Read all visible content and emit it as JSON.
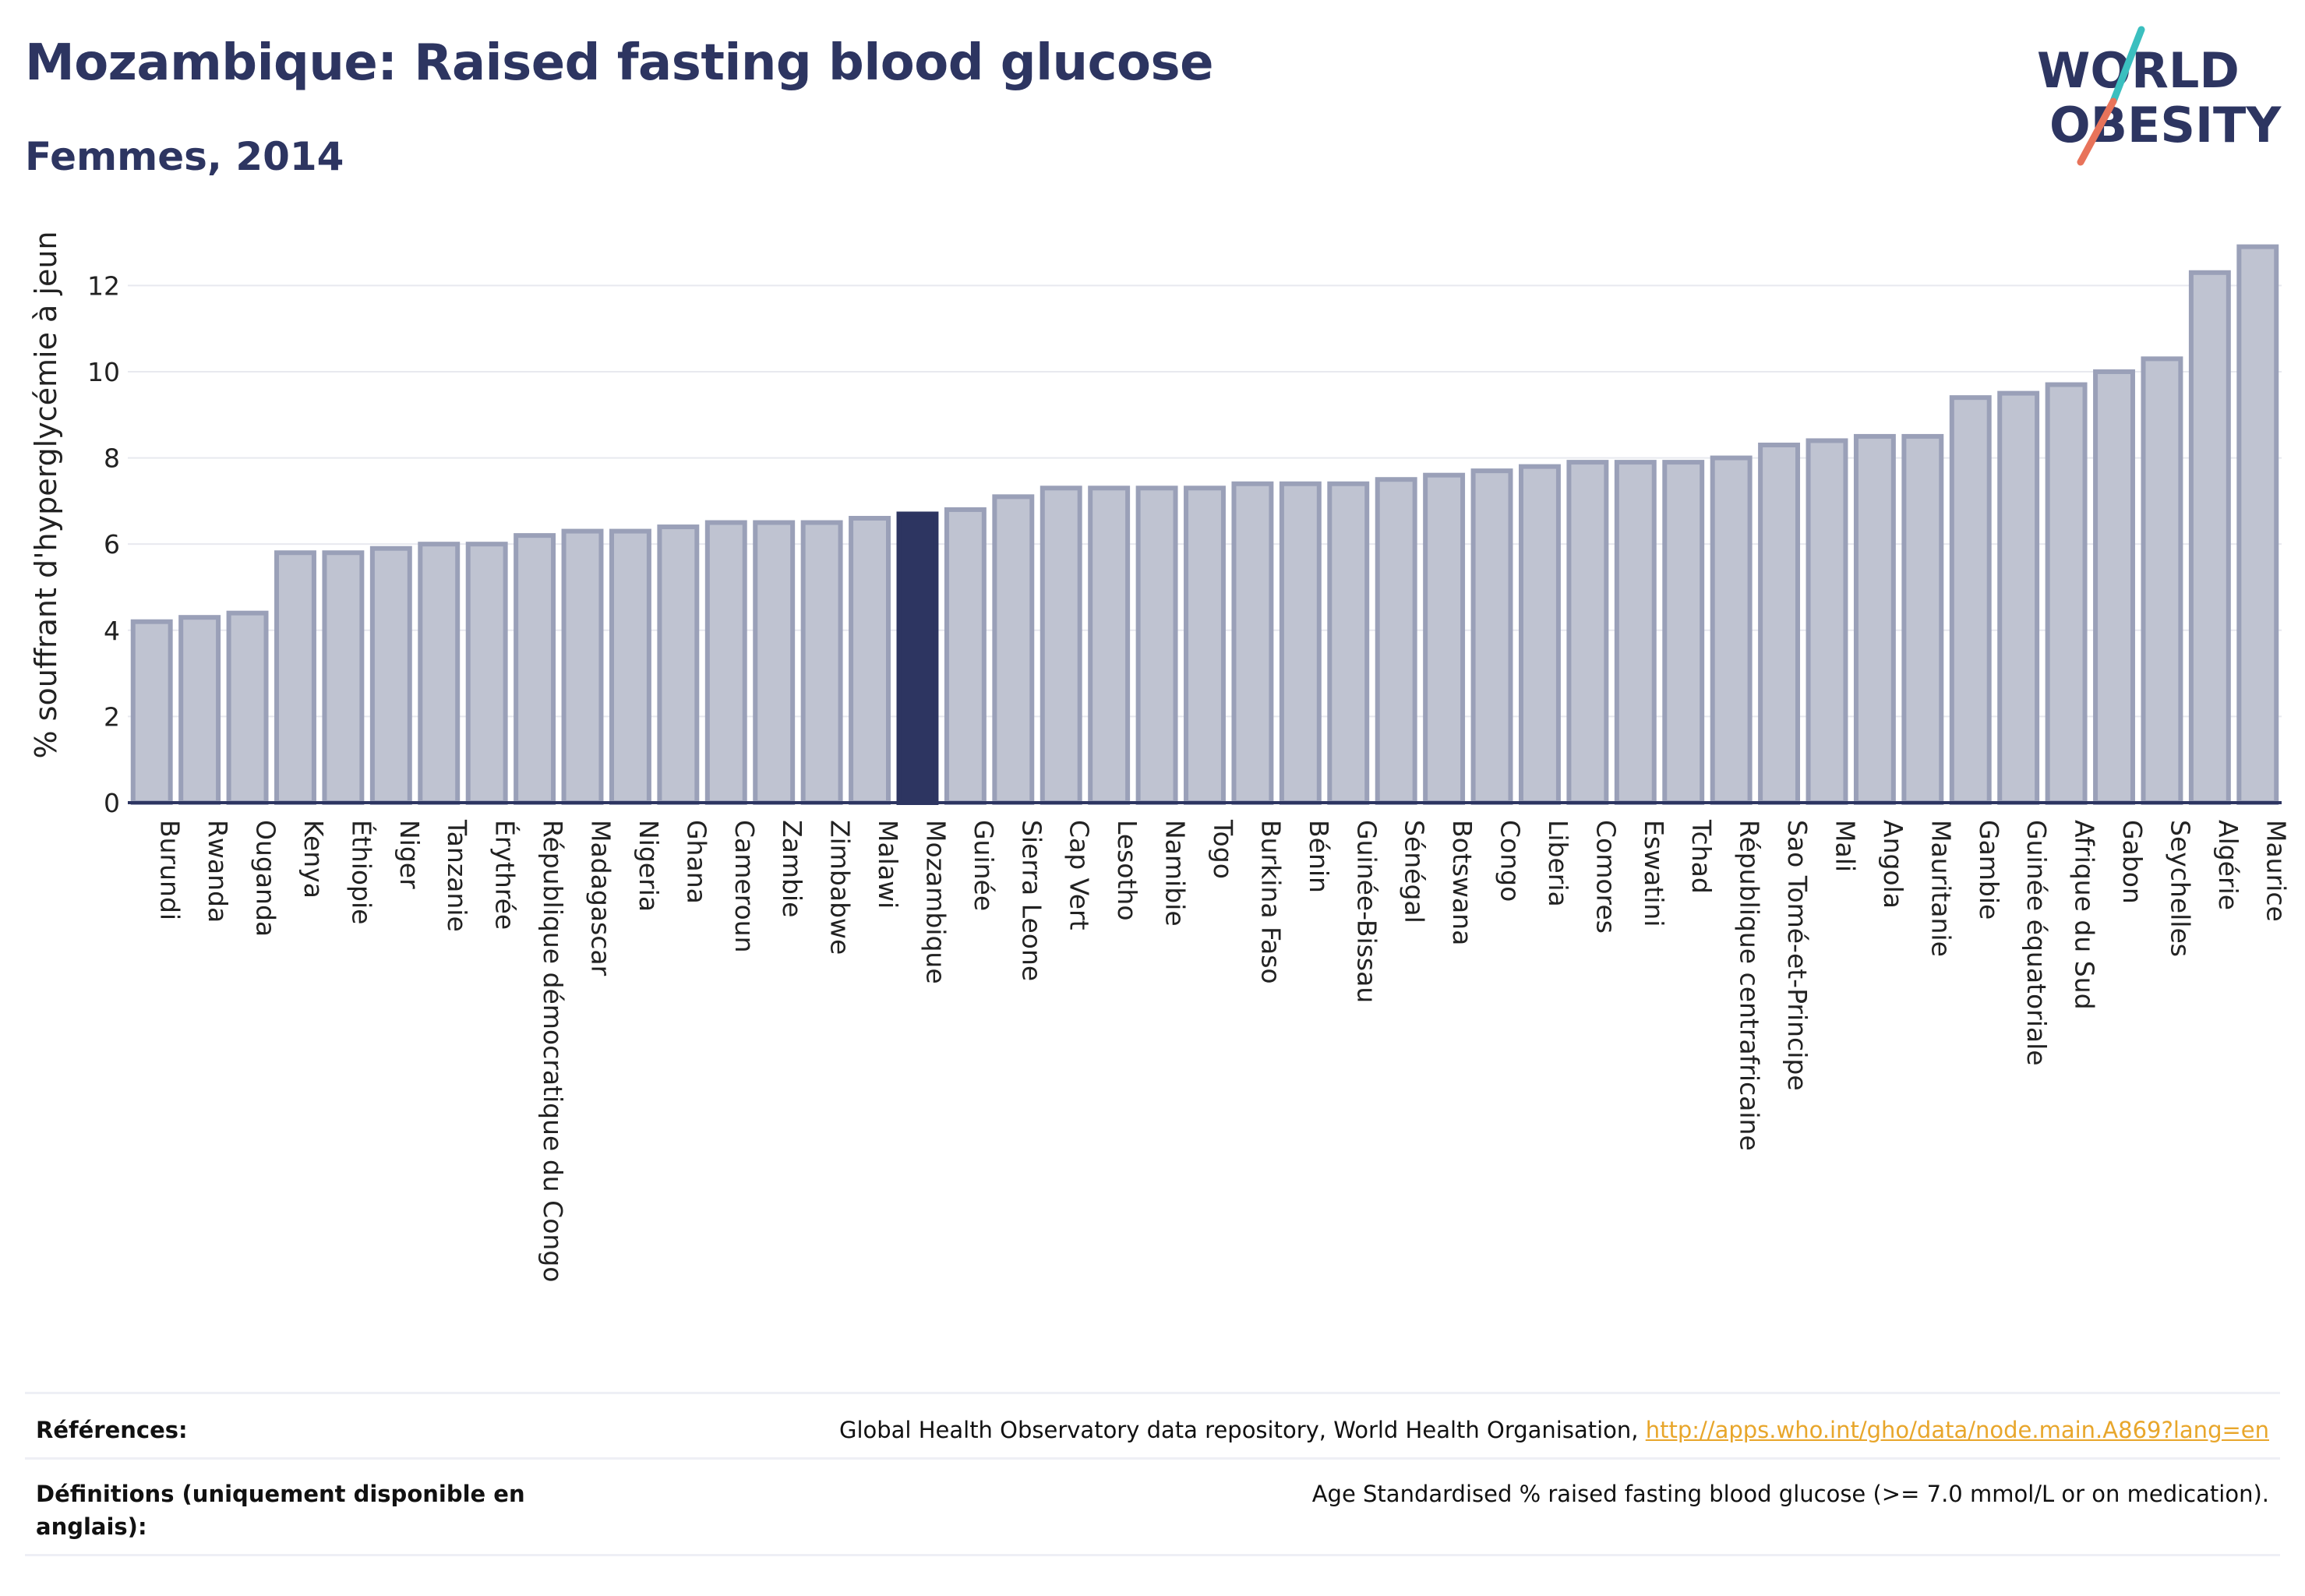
{
  "header": {
    "title": "Mozambique: Raised fasting blood glucose",
    "subtitle": "Femmes, 2014"
  },
  "logo": {
    "line1": "WORLD",
    "line2": "OBESITY",
    "color_text": "#2d3561",
    "color_slash_top": "#3bbfbf",
    "color_slash_bottom": "#e8735a"
  },
  "chart_data": {
    "type": "bar",
    "title": "Mozambique: Raised fasting blood glucose",
    "subtitle": "Femmes, 2014",
    "ylabel": "% souffrant d'hyperglycémie à jeun",
    "xlabel": "",
    "ylim": [
      0,
      13.2
    ],
    "yticks": [
      0,
      2,
      4,
      6,
      8,
      10,
      12
    ],
    "grid": true,
    "highlight": "Mozambique",
    "colors": {
      "bar": "#bfc3d1",
      "bar_border": "#9aa0b8",
      "highlight": "#2d3561",
      "grid": "#e8e9ef",
      "axis": "#2d3561"
    },
    "categories": [
      "Burundi",
      "Rwanda",
      "Ouganda",
      "Kenya",
      "Éthiopie",
      "Niger",
      "Tanzanie",
      "Érythrée",
      "République démocratique du Congo",
      "Madagascar",
      "Nigeria",
      "Ghana",
      "Cameroun",
      "Zambie",
      "Zimbabwe",
      "Malawi",
      "Mozambique",
      "Guinée",
      "Sierra Leone",
      "Cap Vert",
      "Lesotho",
      "Namibie",
      "Togo",
      "Burkina Faso",
      "Bénin",
      "Guinée-Bissau",
      "Sénégal",
      "Botswana",
      "Congo",
      "Liberia",
      "Comores",
      "Eswatini",
      "Tchad",
      "République centrafricaine",
      "Sao Tomé-et-Principe",
      "Mali",
      "Angola",
      "Mauritanie",
      "Gambie",
      "Guinée équatoriale",
      "Afrique du Sud",
      "Gabon",
      "Seychelles",
      "Algérie",
      "Maurice"
    ],
    "values": [
      4.2,
      4.3,
      4.4,
      5.8,
      5.8,
      5.9,
      6.0,
      6.0,
      6.2,
      6.3,
      6.3,
      6.4,
      6.5,
      6.5,
      6.5,
      6.6,
      6.7,
      6.8,
      7.1,
      7.3,
      7.3,
      7.3,
      7.3,
      7.4,
      7.4,
      7.4,
      7.5,
      7.6,
      7.7,
      7.8,
      7.9,
      7.9,
      7.9,
      8.0,
      8.3,
      8.4,
      8.5,
      8.5,
      9.4,
      9.5,
      9.7,
      10.0,
      10.3,
      12.3,
      12.9
    ]
  },
  "footer": {
    "references_label": "Références:",
    "references_text": "Global Health Observatory data repository, World Health Organisation, ",
    "references_link": "http://apps.who.int/gho/data/node.main.A869?lang=en",
    "definitions_label_line1": "Définitions (uniquement disponible en",
    "definitions_label_line2": "anglais):",
    "definitions_text": "Age Standardised % raised fasting blood glucose (>= 7.0 mmol/L or on medication)."
  }
}
